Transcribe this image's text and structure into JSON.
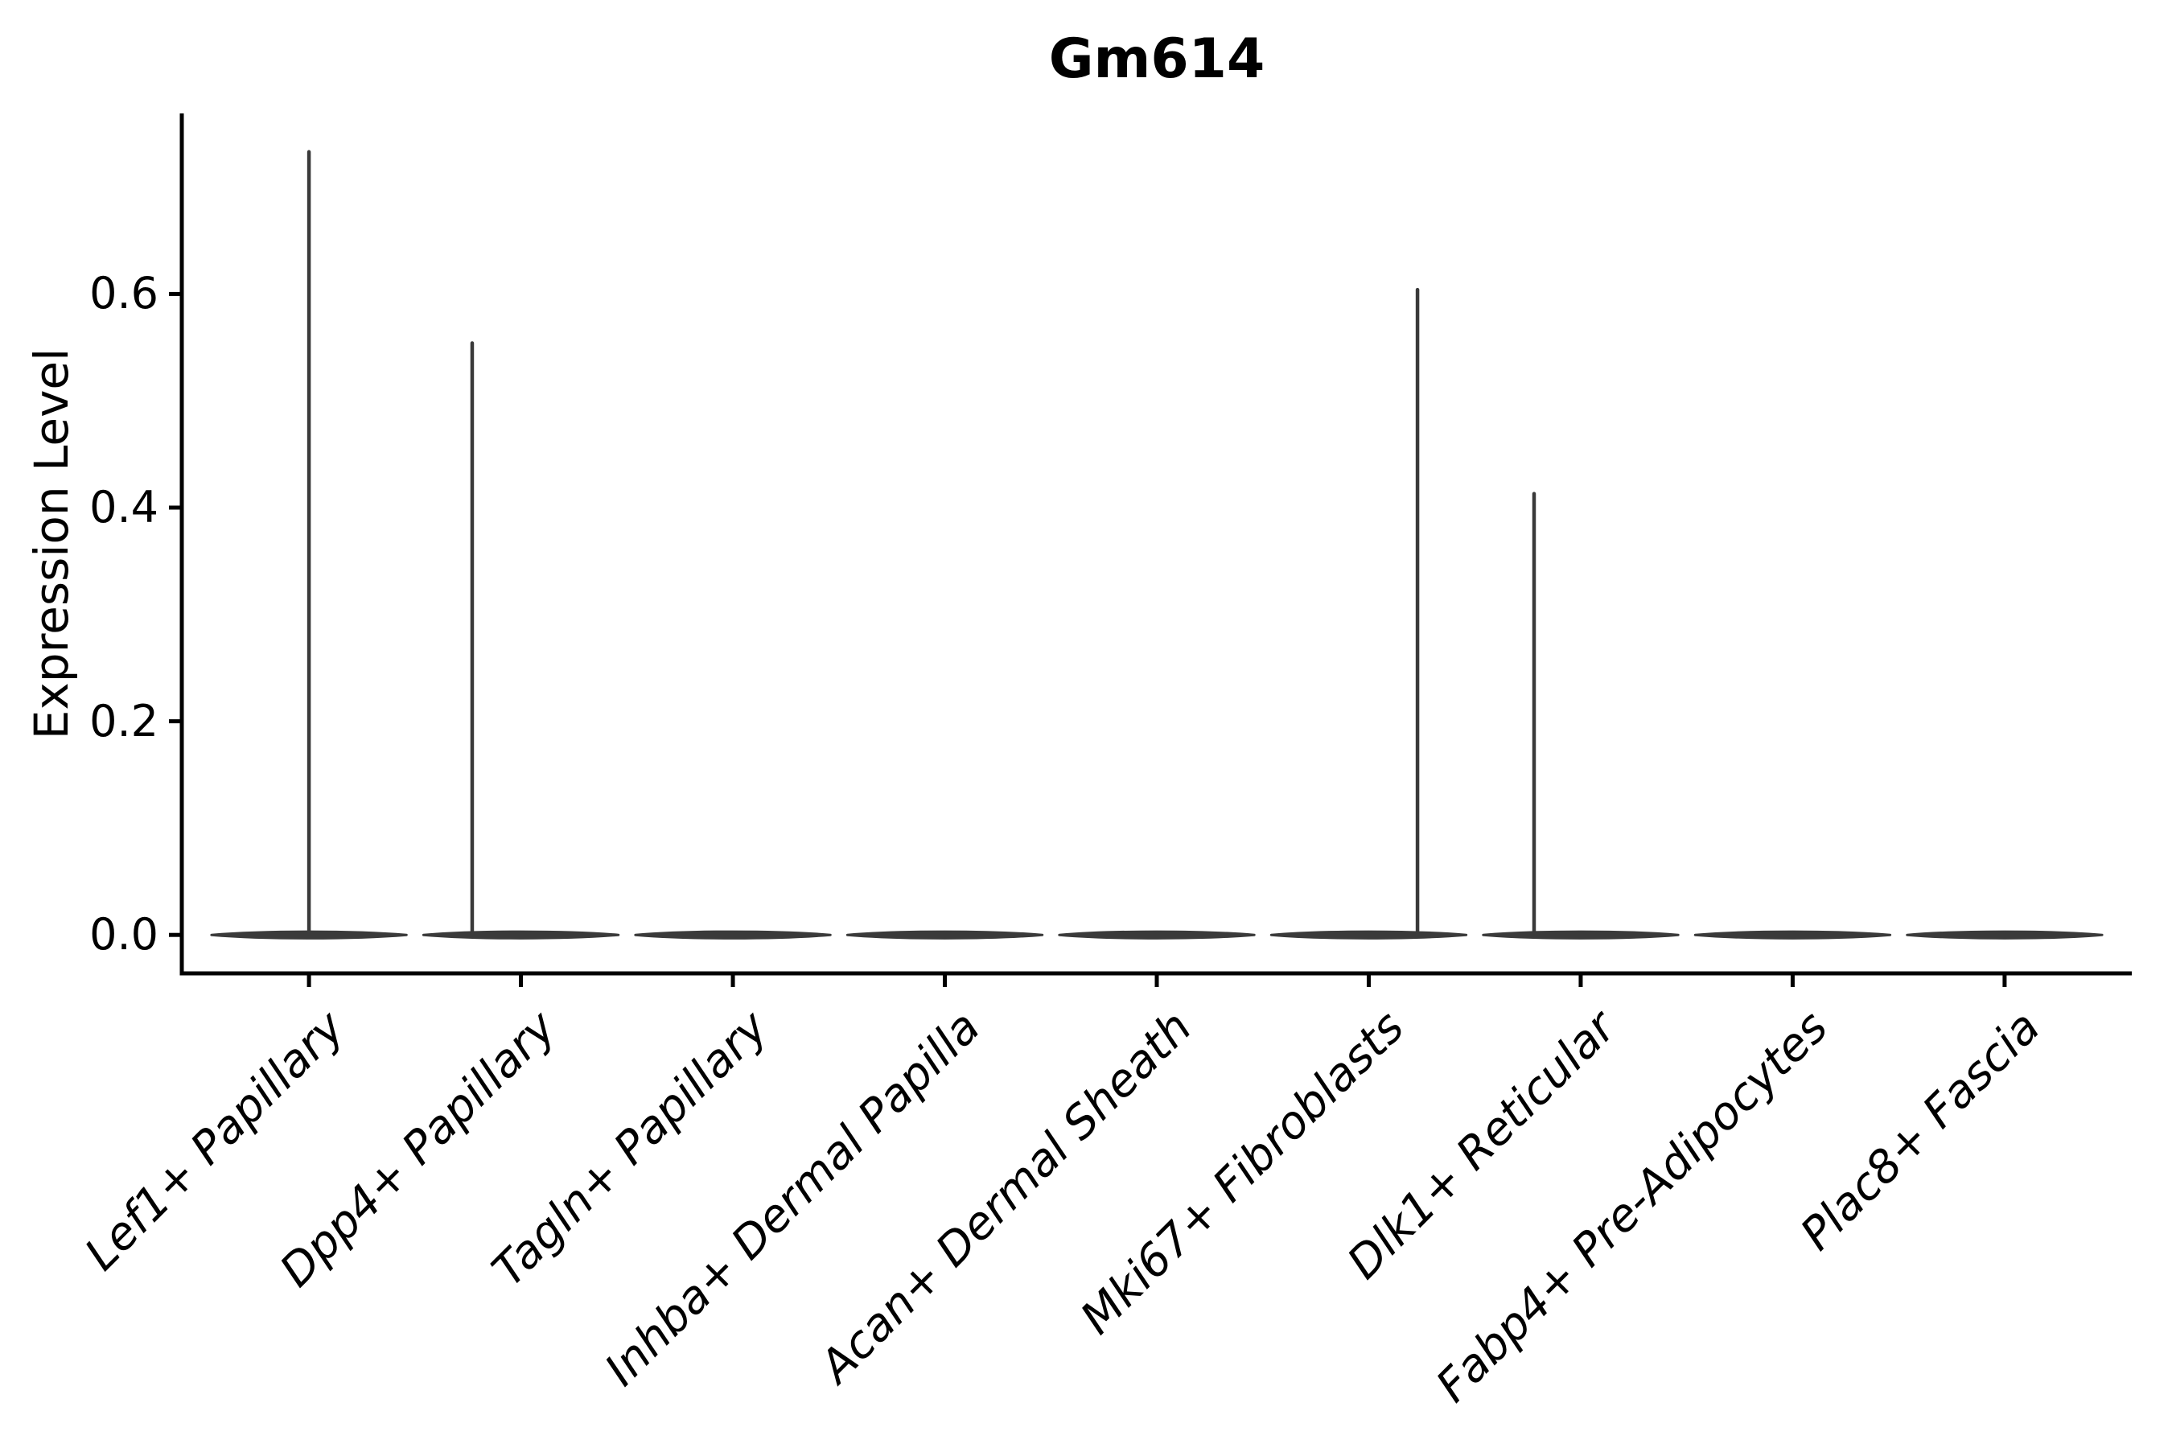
{
  "page": {
    "background_color": "#ffffff",
    "axis_color": "#000000",
    "violin_color": "#3a3a3a",
    "text_color": "#000000"
  },
  "chart_data": {
    "type": "violin",
    "title": "Gm614",
    "xlabel": "",
    "ylabel": "Expression Level",
    "legend": "none",
    "grid": false,
    "ylim": [
      -0.036,
      0.769
    ],
    "yticks": [
      0.0,
      0.2,
      0.4,
      0.6
    ],
    "ytick_labels": [
      "0.0",
      "0.2",
      "0.4",
      "0.6"
    ],
    "xtick_rotation_deg": 45,
    "violin_width_units": 0.92,
    "categories": [
      "Lef1+ Papillary",
      "Dpp4+ Papillary",
      "Tagln+ Papillary",
      "Inhba+ Dermal Papilla",
      "Acan+ Dermal Sheath",
      "Mki67+ Fibroblasts",
      "Dlk1+ Reticular",
      "Fabp4+ Pre-Adipocytes",
      "Plac8+ Fascia"
    ],
    "violins": [
      {
        "category": "Lef1+ Papillary",
        "peak_expression": 0.733,
        "tail_offset_units": 0.0
      },
      {
        "category": "Dpp4+ Papillary",
        "peak_expression": 0.554,
        "tail_offset_units": -0.23
      },
      {
        "category": "Tagln+ Papillary",
        "peak_expression": 0.0,
        "tail_offset_units": 0.0
      },
      {
        "category": "Inhba+ Dermal Papilla",
        "peak_expression": 0.0,
        "tail_offset_units": 0.0
      },
      {
        "category": "Acan+ Dermal Sheath",
        "peak_expression": 0.0,
        "tail_offset_units": 0.0
      },
      {
        "category": "Mki67+ Fibroblasts",
        "peak_expression": 0.604,
        "tail_offset_units": 0.23
      },
      {
        "category": "Dlk1+ Reticular",
        "peak_expression": 0.413,
        "tail_offset_units": -0.22
      },
      {
        "category": "Fabp4+ Pre-Adipocytes",
        "peak_expression": 0.0,
        "tail_offset_units": 0.0
      },
      {
        "category": "Plac8+ Fascia",
        "peak_expression": 0.0,
        "tail_offset_units": 0.0
      }
    ]
  }
}
